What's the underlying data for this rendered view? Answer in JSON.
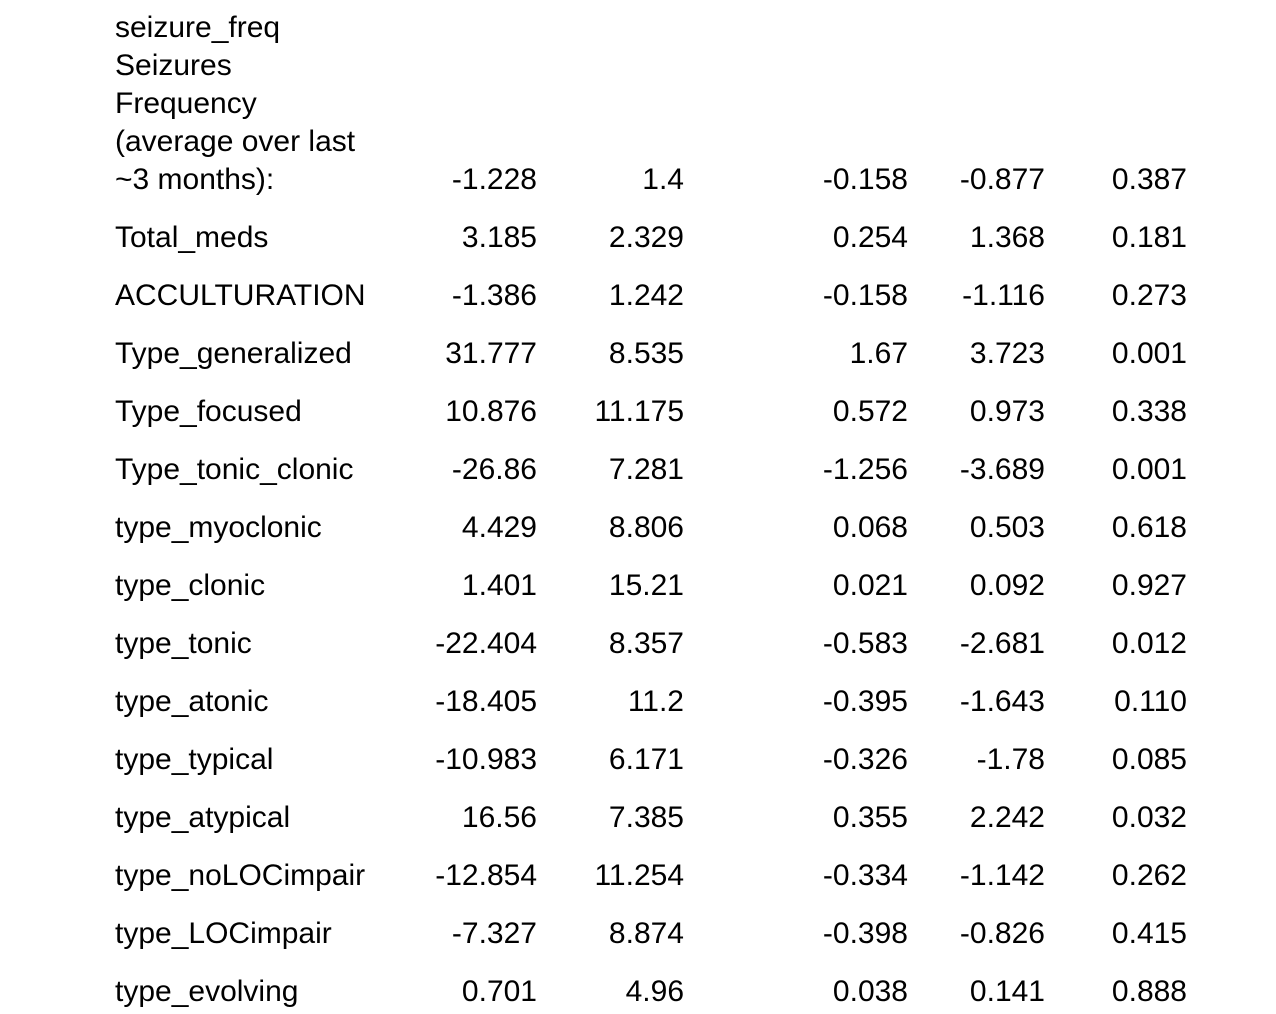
{
  "table": {
    "description": "regression-coefficients-table-fragment",
    "text_color": "#000000",
    "background_color": "#ffffff",
    "rows": [
      {
        "label": "seizure_freq\nSeizures\nFrequency\n(average over last\n~3 months):",
        "values": [
          "-1.228",
          "1.4",
          "-0.158",
          "-0.877",
          "0.387"
        ]
      },
      {
        "label": "Total_meds",
        "values": [
          "3.185",
          "2.329",
          "0.254",
          "1.368",
          "0.181"
        ]
      },
      {
        "label": "ACCULTURATION",
        "values": [
          "-1.386",
          "1.242",
          "-0.158",
          "-1.116",
          "0.273"
        ]
      },
      {
        "label": "Type_generalized",
        "values": [
          "31.777",
          "8.535",
          "1.67",
          "3.723",
          "0.001"
        ]
      },
      {
        "label": "Type_focused",
        "values": [
          "10.876",
          "11.175",
          "0.572",
          "0.973",
          "0.338"
        ]
      },
      {
        "label": "Type_tonic_clonic",
        "values": [
          "-26.86",
          "7.281",
          "-1.256",
          "-3.689",
          "0.001"
        ]
      },
      {
        "label": "type_myoclonic",
        "values": [
          "4.429",
          "8.806",
          "0.068",
          "0.503",
          "0.618"
        ]
      },
      {
        "label": "type_clonic",
        "values": [
          "1.401",
          "15.21",
          "0.021",
          "0.092",
          "0.927"
        ]
      },
      {
        "label": "type_tonic",
        "values": [
          "-22.404",
          "8.357",
          "-0.583",
          "-2.681",
          "0.012"
        ]
      },
      {
        "label": "type_atonic",
        "values": [
          "-18.405",
          "11.2",
          "-0.395",
          "-1.643",
          "0.110"
        ]
      },
      {
        "label": "type_typical",
        "values": [
          "-10.983",
          "6.171",
          "-0.326",
          "-1.78",
          "0.085"
        ]
      },
      {
        "label": "type_atypical",
        "values": [
          "16.56",
          "7.385",
          "0.355",
          "2.242",
          "0.032"
        ]
      },
      {
        "label": "type_noLOCimpair",
        "values": [
          "-12.854",
          "11.254",
          "-0.334",
          "-1.142",
          "0.262"
        ]
      },
      {
        "label": "type_LOCimpair",
        "values": [
          "-7.327",
          "8.874",
          "-0.398",
          "-0.826",
          "0.415"
        ]
      },
      {
        "label": "type_evolving",
        "values": [
          "0.701",
          "4.96",
          "0.038",
          "0.141",
          "0.888"
        ]
      }
    ]
  }
}
